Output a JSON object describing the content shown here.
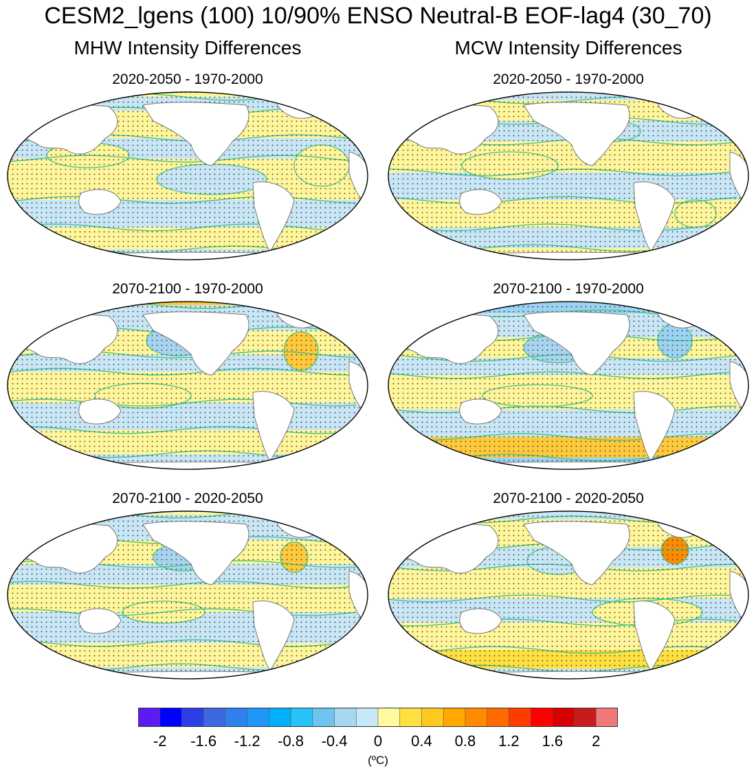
{
  "title": "CESM2_lgens (100) 10/90% ENSO Neutral-B EOF-lag4 (30_70)",
  "columns": [
    {
      "title": "MHW Intensity Differences",
      "panels": [
        "2020-2050 - 1970-2000",
        "2070-2100 - 1970-2000",
        "2070-2100 - 2020-2050"
      ]
    },
    {
      "title": "MCW Intensity Differences",
      "panels": [
        "2020-2050 - 1970-2000",
        "2070-2100 - 1970-2000",
        "2070-2100 - 2020-2050"
      ]
    }
  ],
  "colorbar": {
    "colors": [
      "#5a1cf2",
      "#0000ff",
      "#2c3fe6",
      "#3d68e0",
      "#2f81ee",
      "#1e96fa",
      "#00b0fa",
      "#27c2f7",
      "#6fc4ef",
      "#a6d8f0",
      "#c8e8f7",
      "#fffaa0",
      "#ffe040",
      "#ffc820",
      "#ffa800",
      "#ff8c00",
      "#ff6a00",
      "#ff3c00",
      "#ff0000",
      "#d80000",
      "#c81c1c",
      "#f07878"
    ],
    "labels": [
      "-2",
      "-1.6",
      "-1.2",
      "-0.8",
      "-0.4",
      "0",
      "0.4",
      "0.8",
      "1.2",
      "1.6",
      "2"
    ],
    "unit": "(ºC)"
  },
  "legend_colors": {
    "yellow": "#fff59a",
    "blue": "#c8e6f5",
    "orange": "#ffc93c",
    "contour": "#45c48a",
    "land": "#ffffff"
  }
}
